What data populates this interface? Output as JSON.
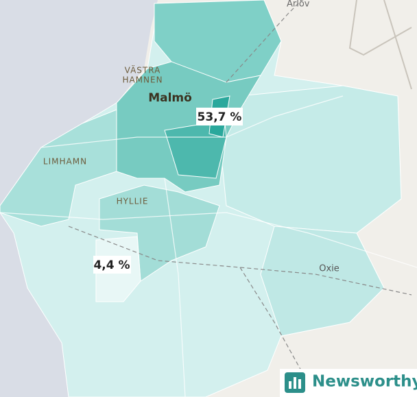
{
  "places": {
    "arlov": "Arlöv",
    "vastra_hamnen": [
      "VÄSTRA",
      "HAMNEN"
    ],
    "malmo": "Malmö",
    "limhamn": "LIMHAMN",
    "hyllie": "HYLLIE",
    "oxie": "Oxie"
  },
  "value_labels": {
    "max": "53,7 %",
    "min": "4,4 %"
  },
  "brand": "Newsworthy"
}
